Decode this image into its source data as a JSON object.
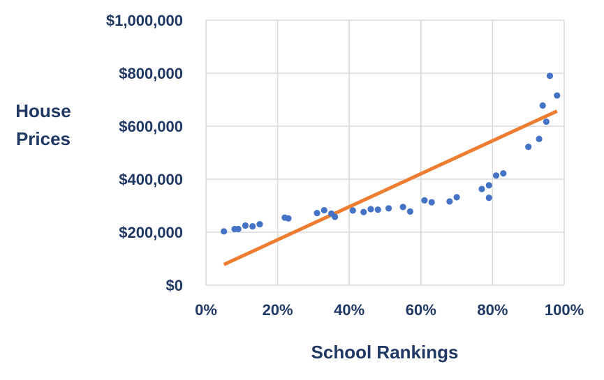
{
  "chart_data": {
    "type": "scatter",
    "title": "",
    "xlabel": "School Rankings",
    "ylabel_lines": [
      "House",
      "Prices"
    ],
    "xlim": [
      0,
      100
    ],
    "ylim": [
      0,
      1000000
    ],
    "x_ticks": [
      0,
      20,
      40,
      60,
      80,
      100
    ],
    "x_tick_labels": [
      "0%",
      "20%",
      "40%",
      "60%",
      "80%",
      "100%"
    ],
    "y_ticks": [
      0,
      200000,
      400000,
      600000,
      800000,
      1000000
    ],
    "y_tick_labels": [
      "$0",
      "$200,000",
      "$400,000",
      "$600,000",
      "$800,000",
      "$1,000,000"
    ],
    "grid": true,
    "series": [
      {
        "kind": "points",
        "x": [
          5,
          8,
          9,
          11,
          13,
          15,
          22,
          23,
          31,
          33,
          35,
          36,
          41,
          44,
          46,
          48,
          51,
          55,
          57,
          61,
          63,
          68,
          70,
          77,
          79,
          79,
          81,
          83,
          90,
          93,
          94,
          95,
          96,
          98
        ],
        "y": [
          203000,
          212000,
          212000,
          225000,
          222000,
          230000,
          255000,
          252000,
          272000,
          283000,
          270000,
          258000,
          282000,
          276000,
          287000,
          285000,
          290000,
          295000,
          278000,
          320000,
          313000,
          316000,
          332000,
          363000,
          377000,
          330000,
          414000,
          422000,
          522000,
          552000,
          678000,
          617000,
          790000,
          716000
        ]
      },
      {
        "kind": "trendline",
        "x": [
          5,
          98
        ],
        "y": [
          78000,
          657000
        ]
      }
    ]
  },
  "colors": {
    "points": "#4472C4",
    "trendline": "#ED7D31",
    "text": "#1F3864",
    "grid": "#D9D9D9"
  }
}
